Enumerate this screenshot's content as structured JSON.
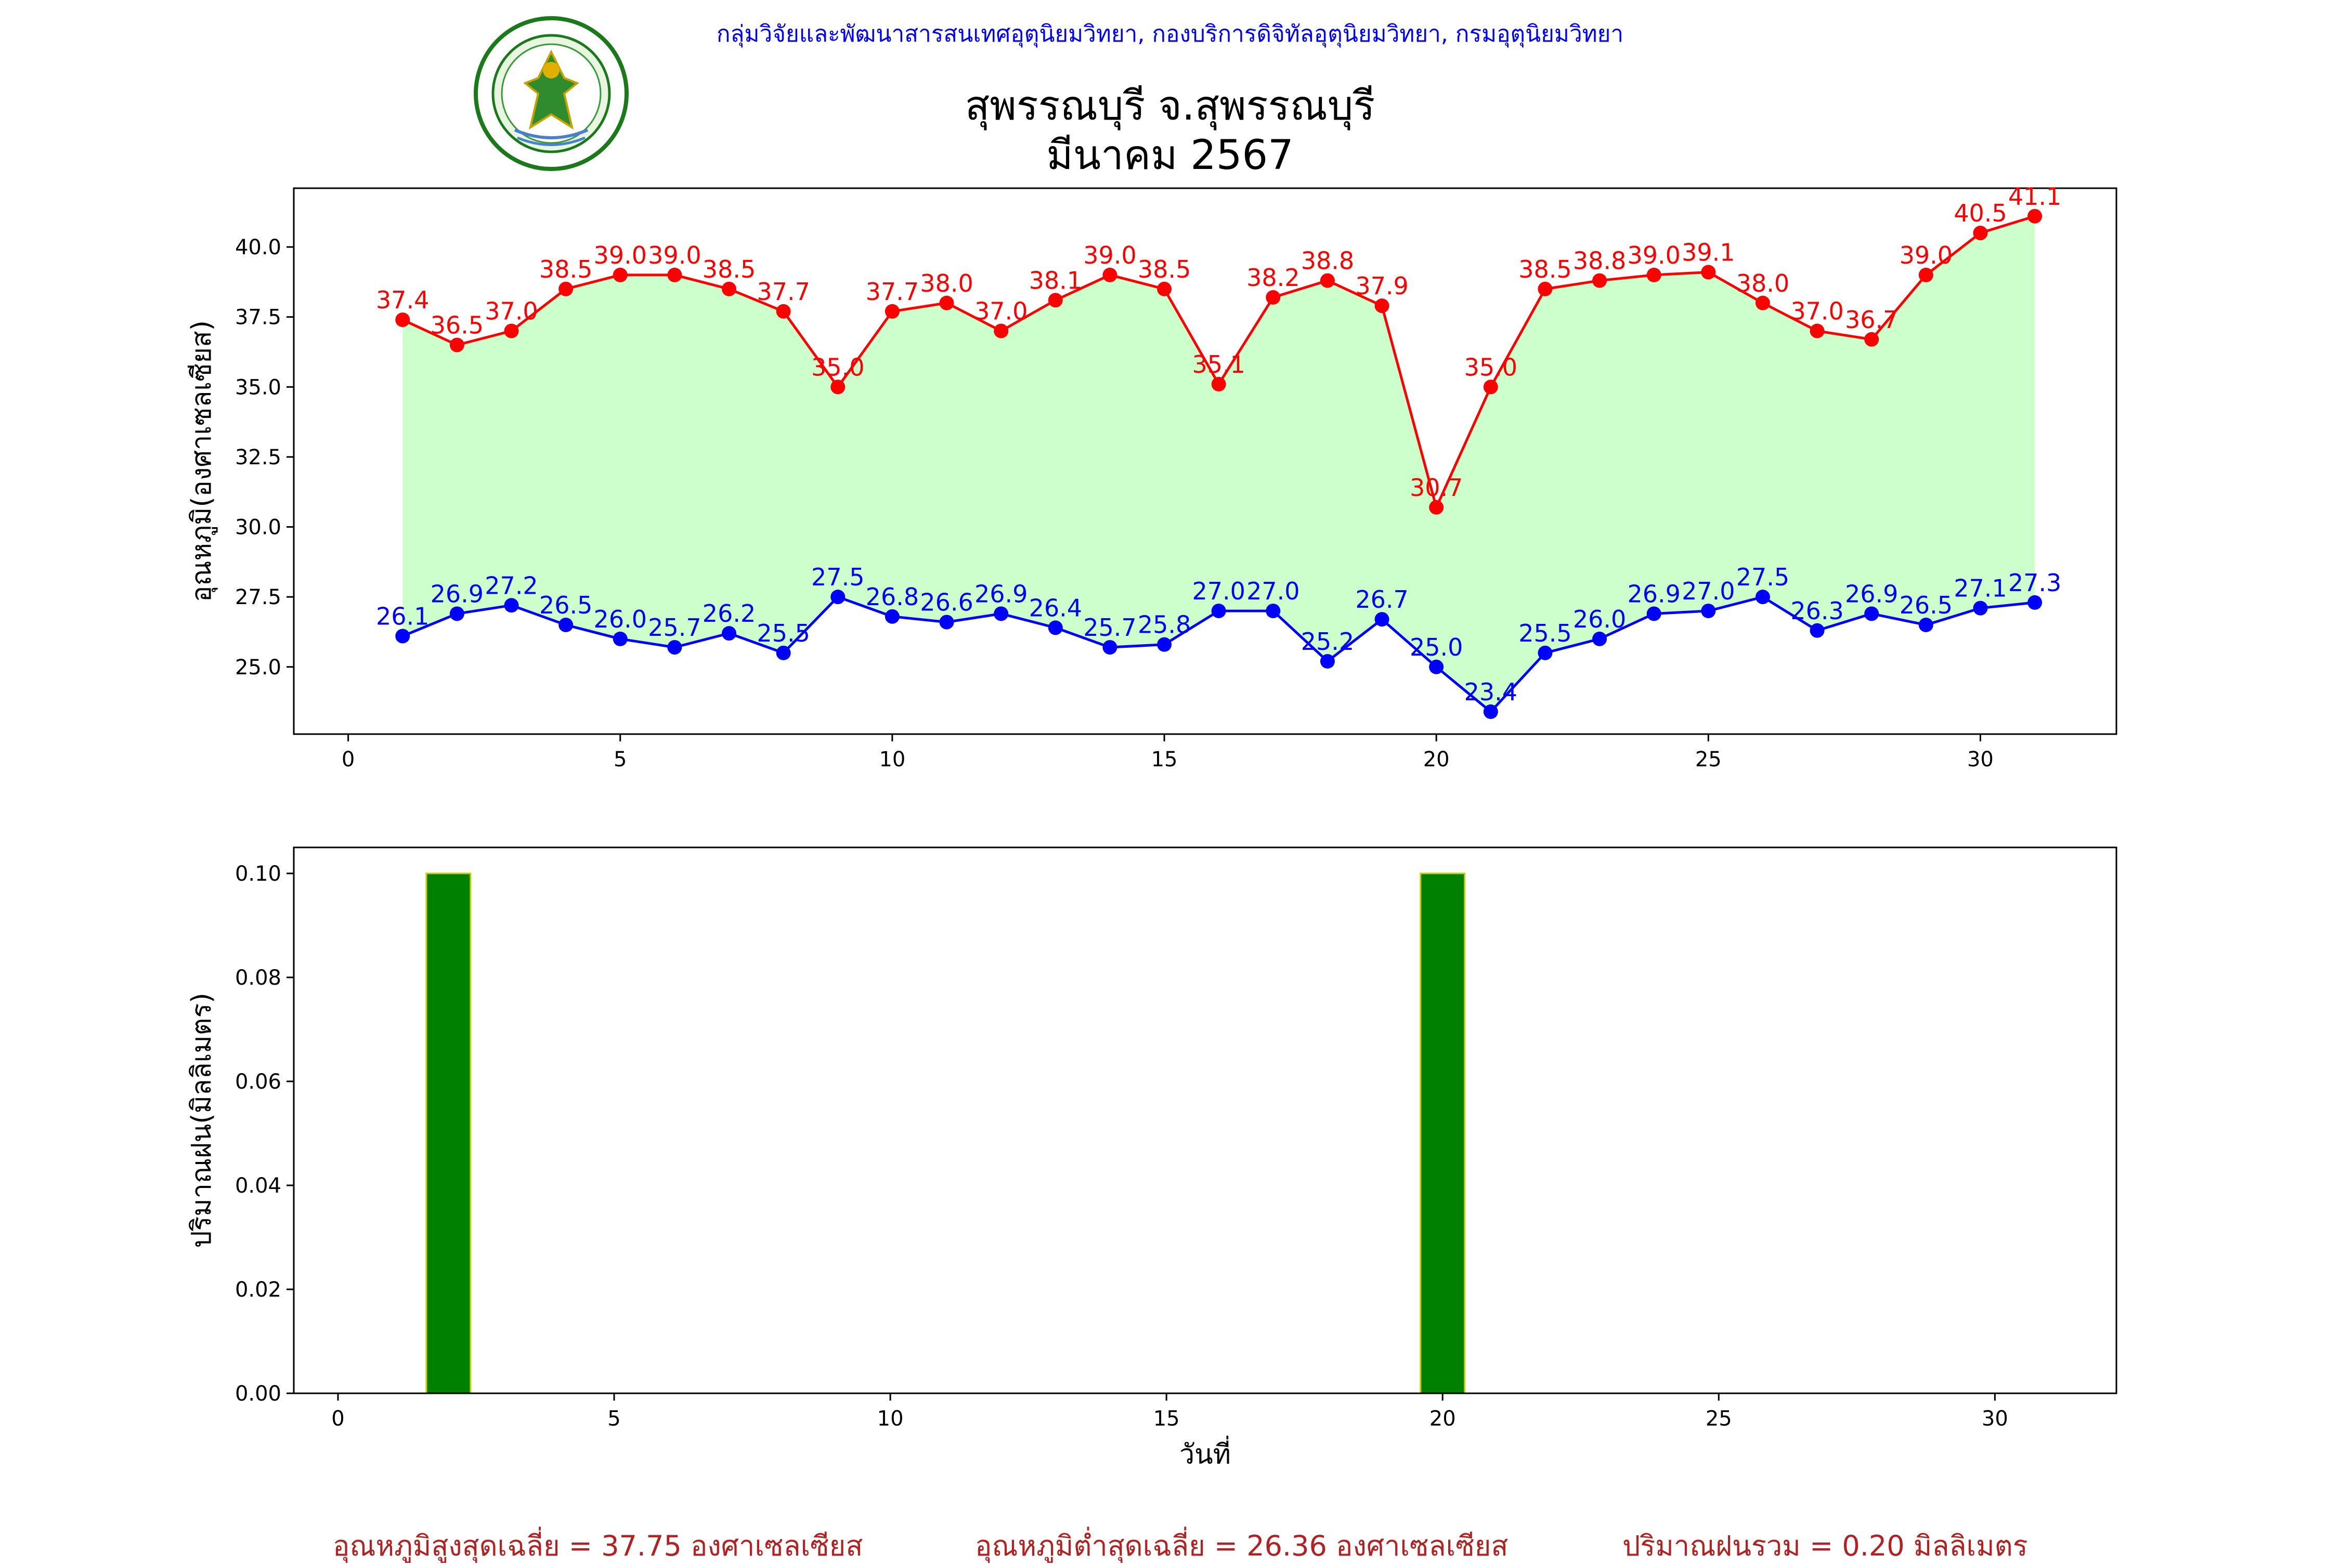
{
  "header": {
    "org_text": "กลุ่มวิจัยและพัฒนาสารสนเทศอุตุนิยมวิทยา, กองบริการดิจิทัลอุตุนิยมวิทยา, กรมอุตุนิยมวิทยา",
    "logo_name": "meteorological-department-seal"
  },
  "title": {
    "line1": "สุพรรณบุรี จ.สุพรรณบุรี",
    "line2": "มีนาคม 2567"
  },
  "colors": {
    "max_temp": "#ff0000",
    "min_temp": "#0000ff",
    "fill": "#ccffcc",
    "rain_bar": "#008000",
    "rain_edge": "#cccc00",
    "stats_text": "#b22222",
    "header_text": "#0000ff"
  },
  "chart_data": [
    {
      "type": "line",
      "ylabel": "อุณหภูมิ(องศาเซลเซียส)",
      "xlabel": "",
      "xlim": [
        -1,
        32.5
      ],
      "ylim": [
        22.6,
        42.1
      ],
      "xticks": [
        0,
        5,
        10,
        15,
        20,
        25,
        30
      ],
      "yticks": [
        "25.0",
        "27.5",
        "30.0",
        "32.5",
        "35.0",
        "37.5",
        "40.0"
      ],
      "x": [
        1,
        2,
        3,
        4,
        5,
        6,
        7,
        8,
        9,
        10,
        11,
        12,
        13,
        14,
        15,
        16,
        17,
        18,
        19,
        20,
        21,
        22,
        23,
        24,
        25,
        26,
        27,
        28,
        29,
        30,
        31
      ],
      "series": [
        {
          "values": [
            37.4,
            36.5,
            37.0,
            38.5,
            39.0,
            39.0,
            38.5,
            37.7,
            35.0,
            37.7,
            38.0,
            37.0,
            38.1,
            39.0,
            38.5,
            35.1,
            38.2,
            38.8,
            37.9,
            30.7,
            35.0,
            38.5,
            38.8,
            39.0,
            39.1,
            38.0,
            37.0,
            36.7,
            39.0,
            40.5,
            41.1
          ],
          "labels": [
            "37.4",
            "36.5",
            "37.0",
            "38.5",
            "39.0",
            "39.0",
            "38.5",
            "37.7",
            "35.0",
            "37.7",
            "38.0",
            "37.0",
            "38.1",
            "39.0",
            "38.5",
            "35.1",
            "38.2",
            "38.8",
            "37.9",
            "30.7",
            "35.0",
            "38.5",
            "38.8",
            "39.0",
            "39.1",
            "38.0",
            "37.0",
            "36.7",
            "39.0",
            "40.5",
            "41.1"
          ]
        },
        {
          "values": [
            26.1,
            26.9,
            27.2,
            26.5,
            26.0,
            25.7,
            26.2,
            25.5,
            27.5,
            26.8,
            26.6,
            26.9,
            26.4,
            25.7,
            25.8,
            27.0,
            27.0,
            25.2,
            26.7,
            25.0,
            23.4,
            25.5,
            26.0,
            26.9,
            27.0,
            27.5,
            26.3,
            26.9,
            26.5,
            27.1,
            27.3
          ],
          "labels": [
            "26.1",
            "26.9",
            "27.2",
            "26.5",
            "26.0",
            "25.7",
            "26.2",
            "25.5",
            "27.5",
            "26.8",
            "26.6",
            "26.9",
            "26.4",
            "25.7",
            "25.8",
            "27.0",
            "27.0",
            "25.2",
            "26.7",
            "25.0",
            "23.4",
            "25.5",
            "26.0",
            "26.9",
            "27.0",
            "27.5",
            "26.3",
            "26.9",
            "26.5",
            "27.1",
            "27.3"
          ]
        }
      ],
      "fill_between": true,
      "grid": false
    },
    {
      "type": "bar",
      "ylabel": "ปริมาณฝน(มิลลิเมตร)",
      "xlabel": "วันที่",
      "xlim": [
        -0.8,
        32.2
      ],
      "ylim": [
        0,
        0.105
      ],
      "xticks": [
        0,
        5,
        10,
        15,
        20,
        25,
        30
      ],
      "yticks": [
        "0.00",
        "0.02",
        "0.04",
        "0.06",
        "0.08",
        "0.10"
      ],
      "x": [
        1,
        2,
        3,
        4,
        5,
        6,
        7,
        8,
        9,
        10,
        11,
        12,
        13,
        14,
        15,
        16,
        17,
        18,
        19,
        20,
        21,
        22,
        23,
        24,
        25,
        26,
        27,
        28,
        29,
        30,
        31
      ],
      "values": [
        0,
        0.1,
        0,
        0,
        0,
        0,
        0,
        0,
        0,
        0,
        0,
        0,
        0,
        0,
        0,
        0,
        0,
        0,
        0,
        0.1,
        0,
        0,
        0,
        0,
        0,
        0,
        0,
        0,
        0,
        0,
        0
      ],
      "grid": false
    }
  ],
  "stats": {
    "avg_max": "อุณหภูมิสูงสุดเฉลี่ย = 37.75 องศาเซลเซียส",
    "avg_min": "อุณหภูมิต่ำสุดเฉลี่ย = 26.36 องศาเซลเซียส",
    "total_rain": "ปริมาณฝนรวม = 0.20 มิลลิเมตร"
  }
}
